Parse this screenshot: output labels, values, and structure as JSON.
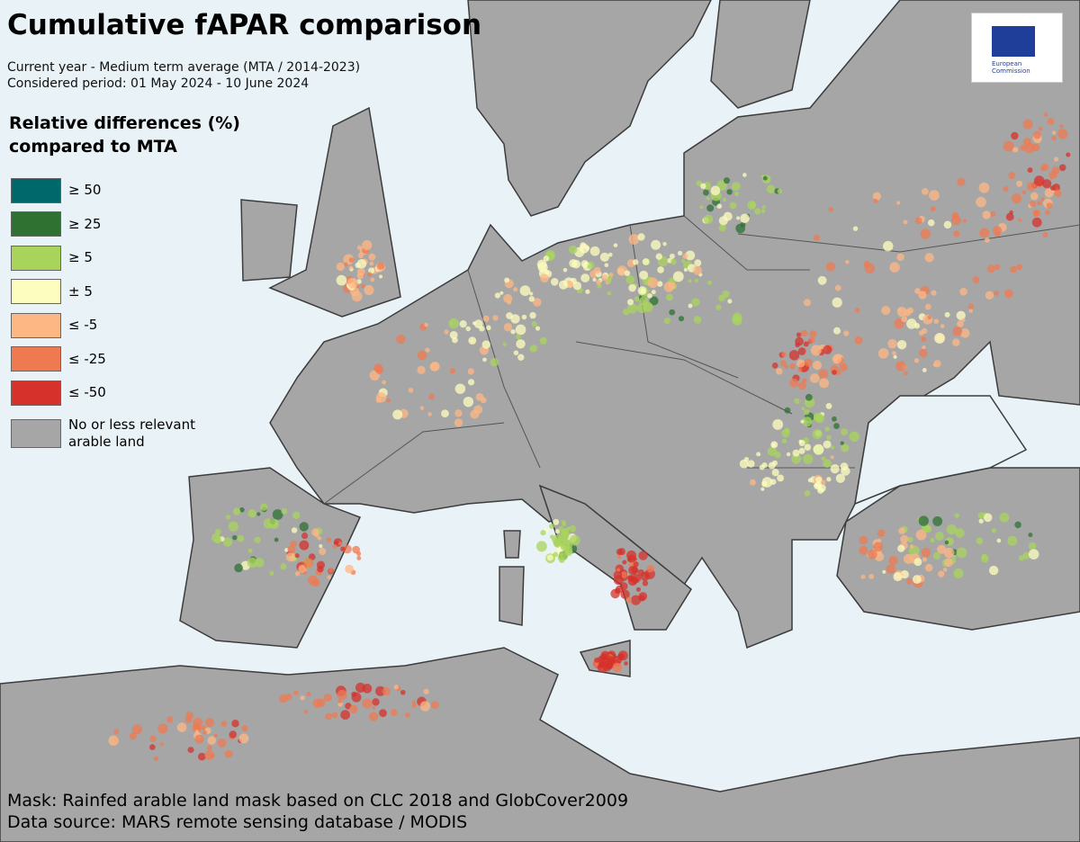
{
  "header": {
    "title": "Cumulative fAPAR comparison",
    "subtitle_lines": [
      "Current year - Medium term average (MTA / 2014-2023)",
      "Considered period: 01 May 2024 - 10 June 2024"
    ]
  },
  "legend": {
    "title_lines": [
      "Relative differences (%)",
      "compared to MTA"
    ],
    "items": [
      {
        "label": "≥ 50",
        "color": "#00686b"
      },
      {
        "label": "≥ 25",
        "color": "#2e7131"
      },
      {
        "label": "≥ 5",
        "color": "#a8d45c"
      },
      {
        "label": "± 5",
        "color": "#fdfdbf"
      },
      {
        "label": "≤ -5",
        "color": "#fdb784"
      },
      {
        "label": "≤ -25",
        "color": "#ef7a52"
      },
      {
        "label": "≤ -50",
        "color": "#d6312b"
      },
      {
        "label": "No or less relevant arable land",
        "color": "#a6a6a6"
      }
    ]
  },
  "logo": {
    "lines": [
      "European",
      "Commission"
    ]
  },
  "footer": {
    "lines": [
      "Mask: Rainfed arable land mask based on CLC 2018 and GlobCover2009",
      "Data source: MARS remote sensing database / MODIS"
    ]
  }
}
